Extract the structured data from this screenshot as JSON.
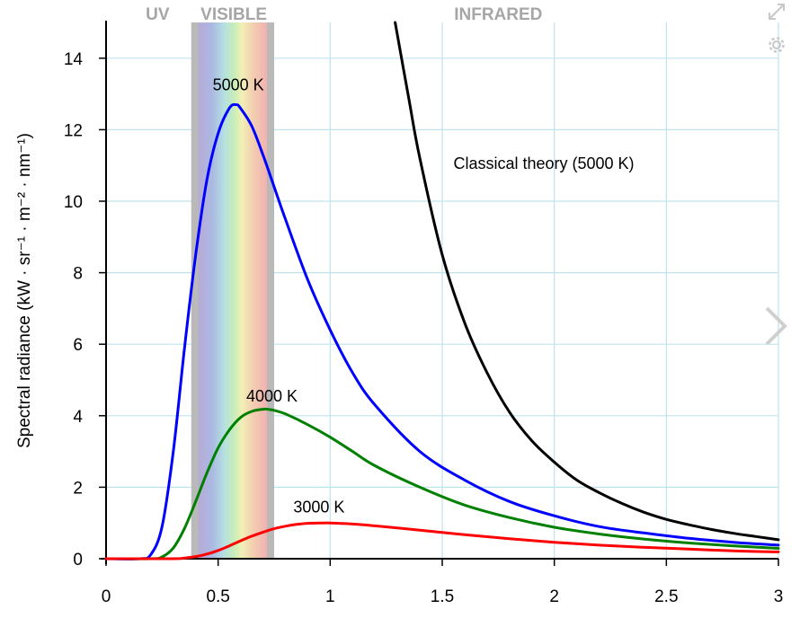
{
  "ui": {
    "expand_icon": "expand-icon",
    "settings_icon": "gear-icon",
    "next_icon": "chevron-right-icon"
  },
  "chart_data": {
    "type": "line",
    "title": "",
    "xlabel": "",
    "ylabel": "Spectral radiance (kW · sr⁻¹ · m⁻² · nm⁻¹)",
    "xlim": [
      0,
      3
    ],
    "ylim": [
      0,
      15
    ],
    "grid": true,
    "x_ticks": [
      "0",
      "0.5",
      "1",
      "1.5",
      "2",
      "2.5",
      "3"
    ],
    "y_ticks": [
      "0",
      "2",
      "4",
      "6",
      "8",
      "10",
      "12",
      "14"
    ],
    "x_tick_values": [
      0,
      0.5,
      1,
      1.5,
      2,
      2.5,
      3
    ],
    "y_tick_values": [
      0,
      2,
      4,
      6,
      8,
      10,
      12,
      14
    ],
    "regions": [
      {
        "label": "UV",
        "x_center": 0.23
      },
      {
        "label": "VISIBLE",
        "x_center": 0.57
      },
      {
        "label": "INFRARED",
        "x_center": 1.75
      }
    ],
    "visible_band": [
      0.38,
      0.75
    ],
    "series": [
      {
        "name": "5000 K",
        "color": "#0000ff",
        "label_pos": [
          0.59,
          13.1
        ],
        "x": [
          0.15,
          0.2,
          0.25,
          0.3,
          0.35,
          0.4,
          0.45,
          0.5,
          0.55,
          0.58,
          0.6,
          0.65,
          0.7,
          0.75,
          0.8,
          0.9,
          1.0,
          1.1,
          1.2,
          1.4,
          1.6,
          1.8,
          2.0,
          2.2,
          2.4,
          2.6,
          2.8,
          3.0
        ],
        "y": [
          0.0,
          0.12,
          0.9,
          3.0,
          5.9,
          8.5,
          10.6,
          11.9,
          12.6,
          12.7,
          12.6,
          12.1,
          11.3,
          10.4,
          9.5,
          7.8,
          6.4,
          5.2,
          4.3,
          3.0,
          2.2,
          1.6,
          1.2,
          0.9,
          0.72,
          0.57,
          0.46,
          0.38
        ]
      },
      {
        "name": "4000 K",
        "color": "#008000",
        "label_pos": [
          0.74,
          4.4
        ],
        "x": [
          0.2,
          0.25,
          0.3,
          0.35,
          0.4,
          0.45,
          0.5,
          0.55,
          0.6,
          0.65,
          0.7,
          0.72,
          0.75,
          0.8,
          0.9,
          1.0,
          1.1,
          1.2,
          1.4,
          1.6,
          1.8,
          2.0,
          2.2,
          2.4,
          2.6,
          2.8,
          3.0
        ],
        "y": [
          0.0,
          0.05,
          0.3,
          0.85,
          1.6,
          2.4,
          3.1,
          3.6,
          3.95,
          4.12,
          4.18,
          4.18,
          4.15,
          4.05,
          3.75,
          3.4,
          3.0,
          2.6,
          2.0,
          1.5,
          1.15,
          0.88,
          0.69,
          0.55,
          0.44,
          0.36,
          0.29
        ]
      },
      {
        "name": "3000 K",
        "color": "#ff0000",
        "label_pos": [
          0.95,
          1.3
        ],
        "x": [
          0.3,
          0.35,
          0.4,
          0.45,
          0.5,
          0.55,
          0.6,
          0.65,
          0.7,
          0.75,
          0.8,
          0.85,
          0.9,
          0.97,
          1.0,
          1.1,
          1.2,
          1.4,
          1.6,
          1.8,
          2.0,
          2.2,
          2.4,
          2.6,
          2.8,
          3.0
        ],
        "y": [
          0.0,
          0.02,
          0.06,
          0.13,
          0.23,
          0.36,
          0.5,
          0.63,
          0.74,
          0.84,
          0.91,
          0.96,
          0.99,
          1.0,
          1.0,
          0.97,
          0.92,
          0.8,
          0.67,
          0.56,
          0.46,
          0.38,
          0.32,
          0.27,
          0.22,
          0.19
        ]
      },
      {
        "name": "Classical theory (5000 K)",
        "color": "#000000",
        "label_pos": [
          1.55,
          10.9
        ],
        "x": [
          1.29,
          1.35,
          1.4,
          1.5,
          1.6,
          1.7,
          1.8,
          1.9,
          2.0,
          2.1,
          2.2,
          2.3,
          2.4,
          2.5,
          2.6,
          2.7,
          2.8,
          2.9,
          3.0
        ],
        "y": [
          15.0,
          12.9,
          11.2,
          8.5,
          6.6,
          5.2,
          4.1,
          3.3,
          2.7,
          2.2,
          1.85,
          1.55,
          1.3,
          1.1,
          0.95,
          0.82,
          0.71,
          0.62,
          0.53
        ]
      }
    ]
  }
}
